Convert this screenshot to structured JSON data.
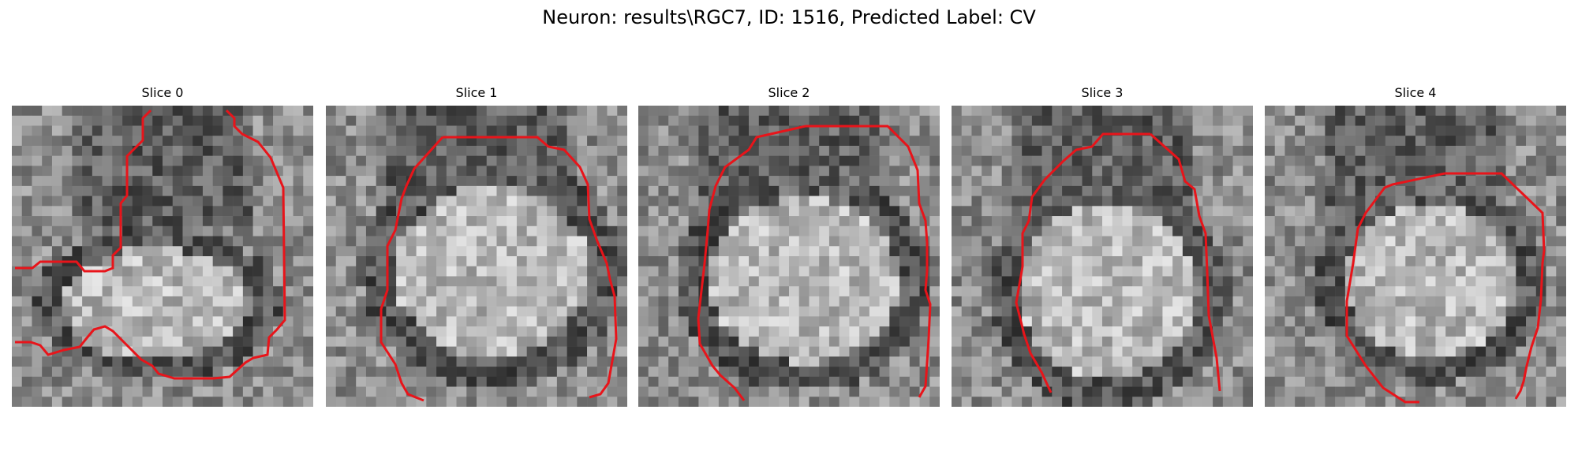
{
  "figure": {
    "title": "Neuron: results\\RGC7, ID: 1516, Predicted Label: CV"
  },
  "slices": [
    {
      "title": "Slice 0"
    },
    {
      "title": "Slice 1"
    },
    {
      "title": "Slice 2"
    },
    {
      "title": "Slice 3"
    },
    {
      "title": "Slice 4"
    }
  ],
  "colors": {
    "contour": "#e8141a",
    "background": "#ffffff"
  }
}
